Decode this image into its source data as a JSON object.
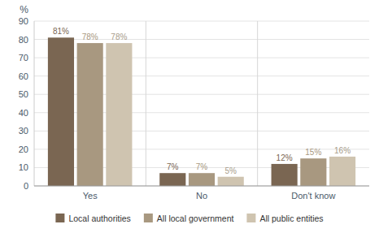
{
  "chart_data": {
    "type": "bar",
    "ylabel": "%",
    "categories": [
      "Yes",
      "No",
      "Don't know"
    ],
    "series": [
      {
        "name": "Local authorities",
        "color": "#7a6652",
        "values": [
          81,
          7,
          12
        ],
        "value_labels": [
          "81%",
          "7%",
          "12%"
        ]
      },
      {
        "name": "All local government",
        "color": "#a89880",
        "values": [
          78,
          7,
          15
        ],
        "value_labels": [
          "78%",
          "7%",
          "15%"
        ]
      },
      {
        "name": "All public entities",
        "color": "#cfc4b0",
        "values": [
          78,
          5,
          16
        ],
        "value_labels": [
          "78%",
          "5%",
          "16%"
        ]
      }
    ],
    "ylim": [
      0,
      90
    ],
    "yticks": [
      0,
      10,
      20,
      30,
      40,
      50,
      60,
      70,
      80,
      90
    ],
    "grid": true,
    "data_labels": true,
    "legend": "bottom"
  }
}
